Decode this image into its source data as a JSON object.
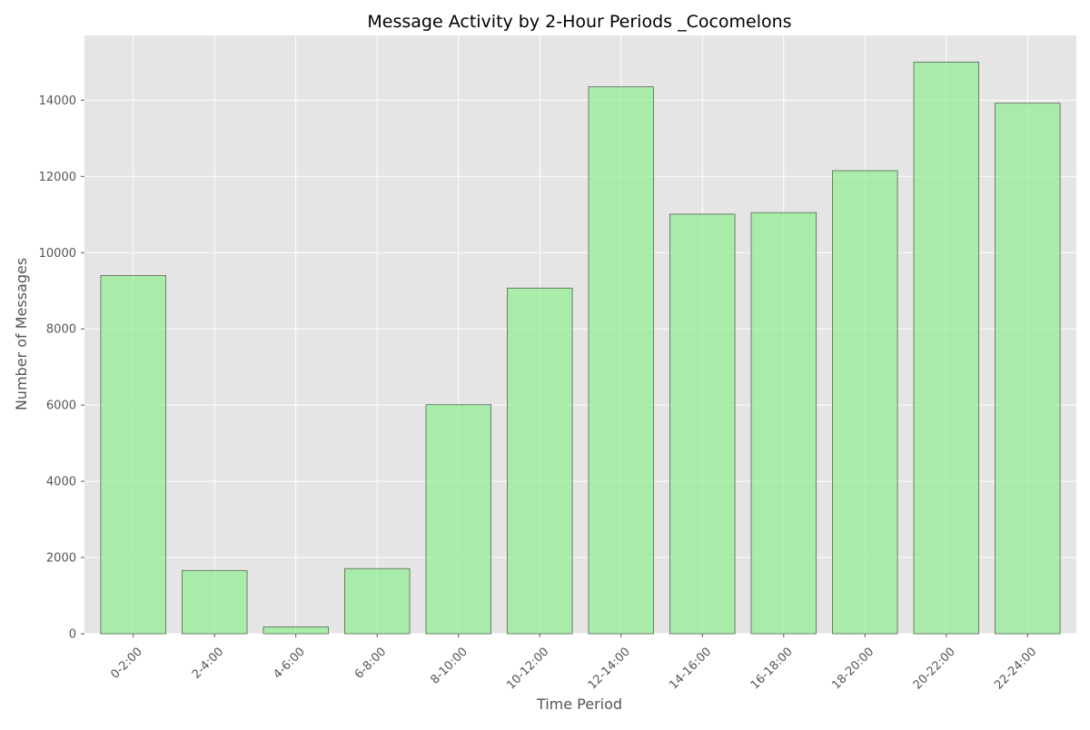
{
  "chart_data": {
    "type": "bar",
    "title": "Message Activity by 2-Hour Periods _Cocomelons",
    "xlabel": "Time Period",
    "ylabel": "Number of Messages",
    "categories": [
      "0-2:00",
      "2-4:00",
      "4-6:00",
      "6-8:00",
      "8-10:00",
      "10-12:00",
      "12-14:00",
      "14-16:00",
      "16-18:00",
      "18-20:00",
      "20-22:00",
      "22-24:00"
    ],
    "values": [
      9400,
      1660,
      180,
      1710,
      6010,
      9070,
      14350,
      11010,
      11050,
      12150,
      15000,
      13920
    ],
    "ylim": [
      0,
      15700
    ],
    "yticks": [
      0,
      2000,
      4000,
      6000,
      8000,
      10000,
      12000,
      14000
    ],
    "grid": true,
    "legend": "none",
    "colors": {
      "bar_fill": "#90ee90",
      "bar_stroke": "#556655",
      "plot_background": "#e5e5e5",
      "grid": "#ffffff"
    }
  }
}
